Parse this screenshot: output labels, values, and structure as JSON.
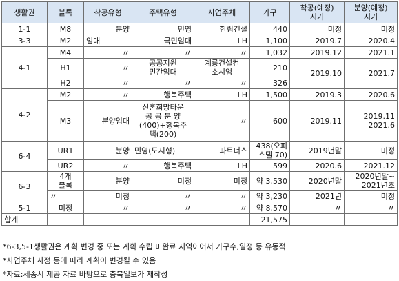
{
  "headers": [
    "생활권",
    "블록",
    "착공유형",
    "주택유형",
    "사업주체",
    "가구",
    "착공(예정)\n시기",
    "분양(예정)\n시기"
  ],
  "rows": {
    "r1": {
      "zone": "1-1",
      "block": "M8",
      "start_type": "분양",
      "housing": "민영",
      "operator": "한림건설",
      "units": "440",
      "start": "미정",
      "sale": "미정"
    },
    "r2": {
      "zone": "3-3",
      "block": "M2",
      "start_type": "임대",
      "housing": "국민임대",
      "operator": "LH",
      "units": "1,100",
      "start": "2019.7",
      "sale": "2020.4"
    },
    "r3": {
      "zone": "4-1",
      "block": "M4",
      "start_type": "〃",
      "housing": "〃",
      "operator": "〃",
      "units": "1,032",
      "start": "2019.12",
      "sale": "2021.1"
    },
    "r4": {
      "block": "H1",
      "start_type": "〃",
      "housing": "공공지원\n민간임대",
      "operator": "계룡건설컨\n소시엄",
      "units": "210",
      "start": "2019.10",
      "sale": "2021.7"
    },
    "r5": {
      "block": "H2",
      "start_type": "〃",
      "housing": "〃",
      "operator": "〃",
      "units": "326"
    },
    "r6": {
      "zone": "4-2",
      "block": "M2",
      "start_type": "〃",
      "housing": "행복주택",
      "operator": "LH",
      "units": "1,500",
      "start": "2019.3",
      "sale": "2020.6"
    },
    "r7": {
      "block": "M3",
      "start_type": "분양임대",
      "housing": "신혼희망타운\n공 공 분 양\n(400)+행복주\n택(200)",
      "operator": "〃",
      "units": "600",
      "start": "2019.11",
      "sale": "2019.11\n2021.6"
    },
    "r8": {
      "zone": "6-4",
      "block": "UR1",
      "start_type": "분양",
      "housing": "민영(도시형)",
      "operator": "파트너스",
      "units": "438(오피\n스텔 70)",
      "start": "2019년말",
      "sale": "미정"
    },
    "r9": {
      "block": "UR2",
      "start_type": "〃",
      "housing": "행복주택",
      "operator": "LH",
      "units": "599",
      "start": "2020.6",
      "sale": "2021.12"
    },
    "r10": {
      "zone": "6-3",
      "block": "4개\n블록",
      "start_type": "분양",
      "housing": "미정",
      "operator": "미정",
      "units": "약 3,530",
      "start": "2020년말",
      "sale": "2020년말~\n2021년초"
    },
    "r11": {
      "block": "〃",
      "start_type": "미정",
      "housing": "〃",
      "operator": "〃",
      "units": "약 3,230",
      "start": "2021년",
      "sale": "미정"
    },
    "r12": {
      "zone": "5-1",
      "block": "미정",
      "start_type": "〃",
      "housing": "〃",
      "operator": "〃",
      "units": "약 8,570",
      "start": "〃",
      "sale": "〃"
    },
    "r13": {
      "zone": "합계",
      "units": "21,575"
    }
  },
  "notes": [
    "*6-3,5-1생활권은 계획 변경 중 또는 계획 수립 미완료 지역이어서 가구수,일정 등 유동적",
    "*사업주체 사정 등에 따라 계획이 변경될 수 있음",
    "*자료:세종시 제공 자료 바탕으로 충북일보가 재작성"
  ],
  "colors": {
    "header_bg": "#d9e5f3",
    "border": "#6f6f6f"
  }
}
